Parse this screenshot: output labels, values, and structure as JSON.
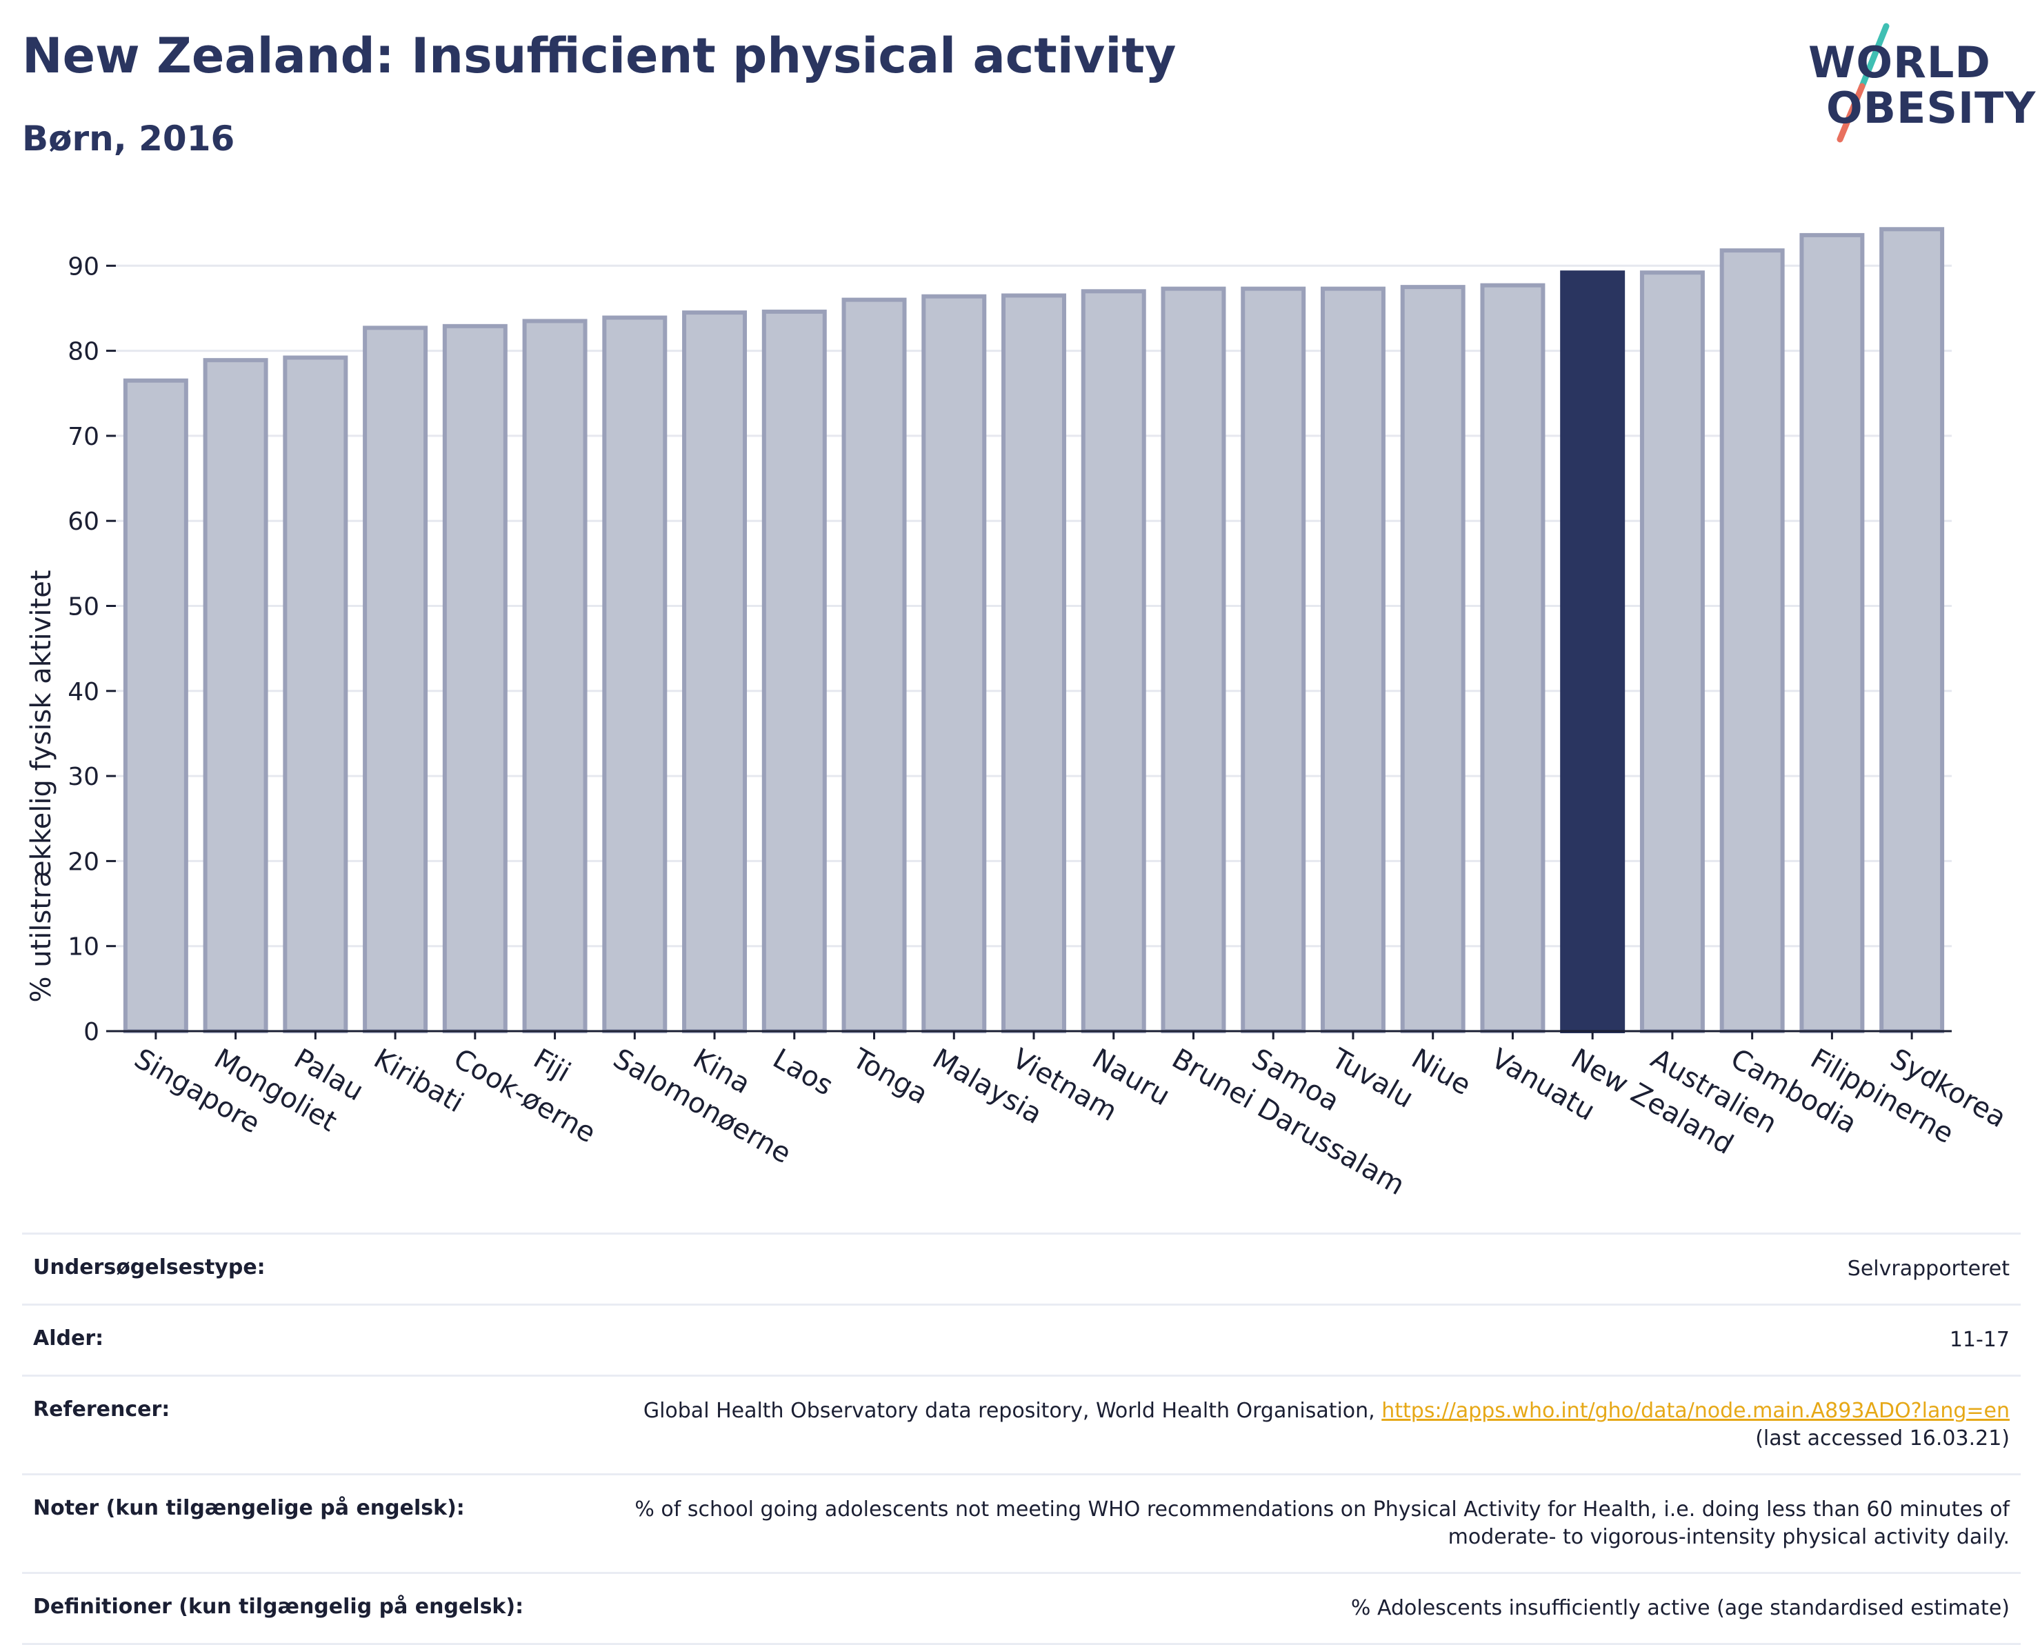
{
  "header": {
    "title": "New Zealand: Insufficient physical activity",
    "subtitle": "Børn, 2016"
  },
  "logo": {
    "line1": "WORLD",
    "line2": "OBESITY"
  },
  "colors": {
    "bar": "#bec3d1",
    "bar_border": "#9aa0b9",
    "highlight": "#2a3560",
    "accent_teal": "#3fbfb3",
    "accent_coral": "#e8705e",
    "link": "#e6a817"
  },
  "chart_data": {
    "type": "bar",
    "ylabel": "% utilstrækkelig fysisk aktivitet",
    "xlabel": "",
    "ylim": [
      0,
      95
    ],
    "yticks": [
      0,
      10,
      20,
      30,
      40,
      50,
      60,
      70,
      80,
      90
    ],
    "grid": true,
    "highlight": "New Zealand",
    "categories": [
      "Singapore",
      "Mongoliet",
      "Palau",
      "Kiribati",
      "Cook-øerne",
      "Fiji",
      "Salomonøerne",
      "Kina",
      "Laos",
      "Tonga",
      "Malaysia",
      "Vietnam",
      "Nauru",
      "Brunei Darussalam",
      "Samoa",
      "Tuvalu",
      "Niue",
      "Vanuatu",
      "New Zealand",
      "Australien",
      "Cambodia",
      "Filippinerne",
      "Sydkorea"
    ],
    "values": [
      76.5,
      78.9,
      79.2,
      82.7,
      82.9,
      83.5,
      83.9,
      84.5,
      84.6,
      86.0,
      86.4,
      86.5,
      87.0,
      87.3,
      87.3,
      87.3,
      87.5,
      87.7,
      89.2,
      89.2,
      91.8,
      93.6,
      94.3
    ]
  },
  "info": {
    "survey_label": "Undersøgelsestype:",
    "survey_value": "Selvrapporteret",
    "age_label": "Alder:",
    "age_value": "11-17",
    "ref_label": "Referencer:",
    "ref_text": "Global Health Observatory data repository, World Health Organisation,",
    "ref_link": "https://apps.who.int/gho/data/node.main.A893ADO?lang=en",
    "ref_accessed": "(last accessed 16.03.21)",
    "notes_label": "Noter (kun tilgængelige på engelsk):",
    "notes_value": "% of school going adolescents not meeting WHO recommendations on Physical Activity for Health, i.e. doing less than 60 minutes of moderate- to vigorous-intensity physical activity daily.",
    "def_label": "Definitioner (kun tilgængelig på engelsk):",
    "def_value": "% Adolescents insufficiently active (age standardised estimate)"
  }
}
